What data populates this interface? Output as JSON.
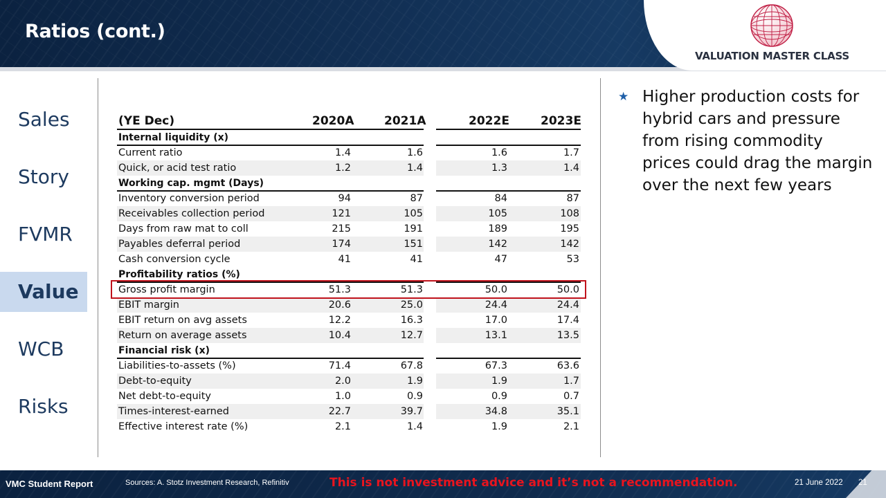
{
  "header": {
    "title": "Ratios (cont.)",
    "brand": "VALUATION MASTER CLASS"
  },
  "nav": {
    "items": [
      {
        "label": "Sales",
        "active": false
      },
      {
        "label": "Story",
        "active": false
      },
      {
        "label": "FVMR",
        "active": false
      },
      {
        "label": "Value",
        "active": true
      },
      {
        "label": "WCB",
        "active": false
      },
      {
        "label": "Risks",
        "active": false
      }
    ]
  },
  "table": {
    "header": {
      "label": "(YE Dec)",
      "cols": [
        "2020A",
        "2021A",
        "2022E",
        "2023E"
      ]
    },
    "rows": [
      {
        "type": "section",
        "label": "Internal liquidity (x)"
      },
      {
        "type": "data",
        "label": "Current ratio",
        "values": [
          "1.4",
          "1.6",
          "1.6",
          "1.7"
        ]
      },
      {
        "type": "data",
        "label": "Quick, or acid test ratio",
        "values": [
          "1.2",
          "1.4",
          "1.3",
          "1.4"
        ]
      },
      {
        "type": "section",
        "label": "Working cap. mgmt (Days)"
      },
      {
        "type": "data",
        "label": "Inventory conversion period",
        "values": [
          "94",
          "87",
          "84",
          "87"
        ]
      },
      {
        "type": "data",
        "label": "Receivables collection period",
        "values": [
          "121",
          "105",
          "105",
          "108"
        ]
      },
      {
        "type": "data",
        "label": "Days from raw mat to coll",
        "values": [
          "215",
          "191",
          "189",
          "195"
        ]
      },
      {
        "type": "data",
        "label": "Payables deferral period",
        "values": [
          "174",
          "151",
          "142",
          "142"
        ]
      },
      {
        "type": "data",
        "label": "Cash conversion cycle",
        "values": [
          "41",
          "41",
          "47",
          "53"
        ]
      },
      {
        "type": "section",
        "label": "Profitability ratios (%)"
      },
      {
        "type": "data",
        "label": "Gross profit margin",
        "values": [
          "51.3",
          "51.3",
          "50.0",
          "50.0"
        ],
        "highlighted": true
      },
      {
        "type": "data",
        "label": "EBIT margin",
        "values": [
          "20.6",
          "25.0",
          "24.4",
          "24.4"
        ]
      },
      {
        "type": "data",
        "label": "EBIT return on avg assets",
        "values": [
          "12.2",
          "16.3",
          "17.0",
          "17.4"
        ]
      },
      {
        "type": "data",
        "label": "Return on average assets",
        "values": [
          "10.4",
          "12.7",
          "13.1",
          "13.5"
        ]
      },
      {
        "type": "section",
        "label": "Financial risk (x)"
      },
      {
        "type": "data",
        "label": "Liabilities-to-assets (%)",
        "values": [
          "71.4",
          "67.8",
          "67.3",
          "63.6"
        ]
      },
      {
        "type": "data",
        "label": "Debt-to-equity",
        "values": [
          "2.0",
          "1.9",
          "1.9",
          "1.7"
        ]
      },
      {
        "type": "data",
        "label": "Net debt-to-equity",
        "values": [
          "1.0",
          "0.9",
          "0.9",
          "0.7"
        ]
      },
      {
        "type": "data",
        "label": "Times-interest-earned",
        "values": [
          "22.7",
          "39.7",
          "34.8",
          "35.1"
        ]
      },
      {
        "type": "data",
        "label": "Effective interest rate (%)",
        "values": [
          "2.1",
          "1.4",
          "1.9",
          "2.1"
        ]
      }
    ]
  },
  "commentary": {
    "bullet_icon": "star-icon",
    "text": "Higher production costs for hybrid cars and pressure from rising commodity prices could drag the margin over the next few years"
  },
  "footer": {
    "report": "VMC Student Report",
    "sources": "Sources: A. Stotz Investment Research, Refinitiv",
    "disclaimer": "This is not investment advice and it’s not a recommendation.",
    "date": "21 June 2022",
    "page": "21"
  },
  "colors": {
    "navy": "#0b2240",
    "accent_red": "#c0121b",
    "nav_active_bg": "#c9d9ee",
    "nav_text": "#1d3a5f",
    "bullet_blue": "#1f5fa8",
    "disclaimer_red": "#e8141e"
  }
}
